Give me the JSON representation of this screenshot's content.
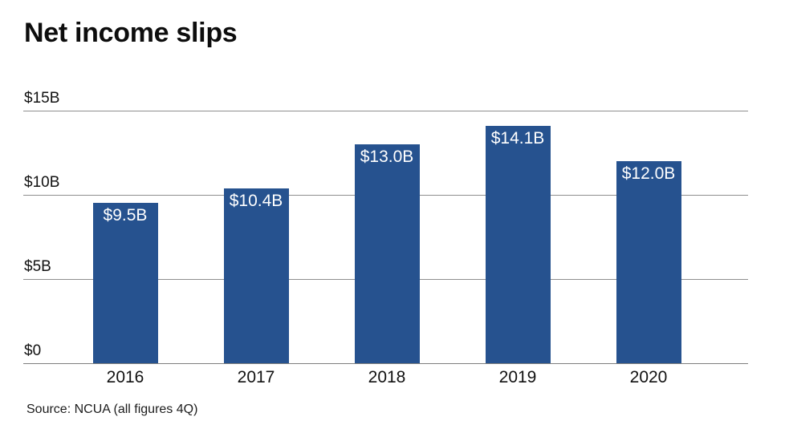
{
  "title": "Net income slips",
  "source": "Source: NCUA (all figures 4Q)",
  "chart_data": {
    "type": "bar",
    "categories": [
      "2016",
      "2017",
      "2018",
      "2019",
      "2020"
    ],
    "values": [
      9.5,
      10.4,
      13.0,
      14.1,
      12.0
    ],
    "bar_labels": [
      "$9.5B",
      "$10.4B",
      "$13.0B",
      "$14.1B",
      "$12.0B"
    ],
    "yticks": [
      0,
      5,
      10,
      15
    ],
    "ytick_labels": [
      "$0",
      "$5B",
      "$10B",
      "$15B"
    ],
    "ylim": [
      0,
      15
    ],
    "xlabel": "",
    "ylabel": "",
    "grid": "horizontal",
    "legend": "none",
    "bar_color": "#26528f",
    "grid_color": "#8e8e8e",
    "value_label_color": "#ffffff"
  }
}
